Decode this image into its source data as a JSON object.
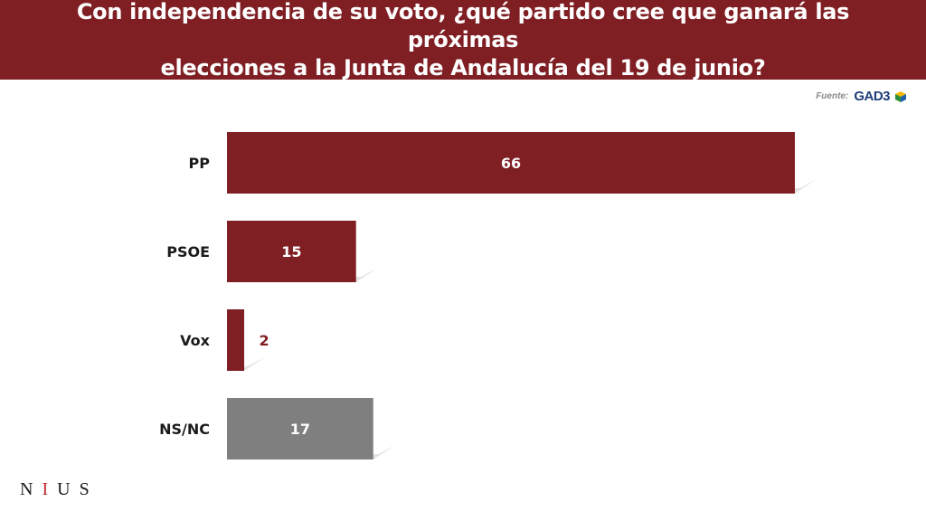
{
  "header": {
    "title": "Con independencia de su voto, ¿qué partido cree que ganará las próximas\nelecciones a la Junta de Andalucía del 19 de junio?"
  },
  "source": {
    "label": "Fuente:",
    "logo": "GAD3"
  },
  "footer": {
    "letters": [
      "N",
      "I",
      "U",
      "S"
    ]
  },
  "colors": {
    "header_bg": "#7f1f24",
    "bar_party": "#7f1f24",
    "bar_nsnc": "#7f7f7f",
    "shadow": "#d9d9d9"
  },
  "chart_data": {
    "type": "bar",
    "orientation": "horizontal",
    "categories": [
      "PP",
      "PSOE",
      "Vox",
      "NS/NC"
    ],
    "values": [
      66,
      15,
      2,
      17
    ],
    "title": "",
    "xlabel": "",
    "ylabel": "",
    "xlim": [
      0,
      70
    ],
    "grid": false,
    "legend": "none"
  }
}
